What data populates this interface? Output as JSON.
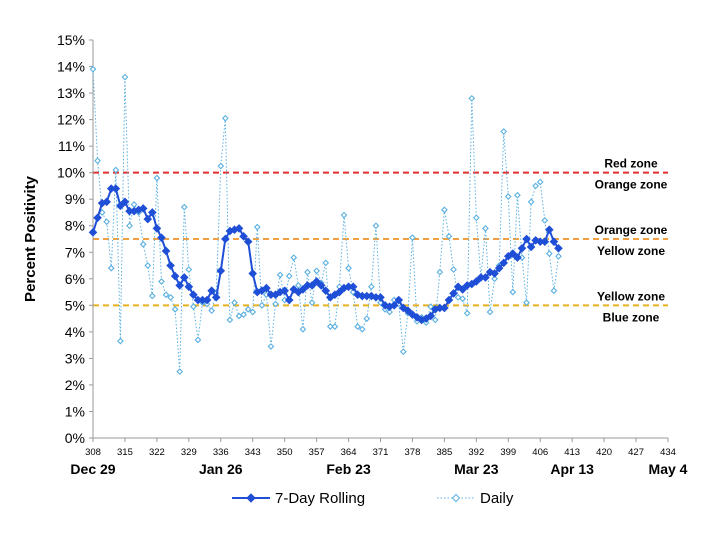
{
  "chart_data": {
    "type": "line",
    "ylabel": "Percent Positivity",
    "xlabel": "",
    "ylim": [
      0,
      15
    ],
    "xlim": [
      308,
      434
    ],
    "y_ticks": [
      "0%",
      "1%",
      "2%",
      "3%",
      "4%",
      "5%",
      "6%",
      "7%",
      "8%",
      "9%",
      "10%",
      "11%",
      "12%",
      "13%",
      "14%",
      "15%"
    ],
    "x_ticks": [
      "308",
      "315",
      "322",
      "329",
      "336",
      "343",
      "350",
      "357",
      "364",
      "371",
      "378",
      "385",
      "392",
      "399",
      "406",
      "413",
      "420",
      "427",
      "434"
    ],
    "date_labels": [
      {
        "x": 308,
        "text": "Dec 29"
      },
      {
        "x": 336,
        "text": "Jan 26"
      },
      {
        "x": 364,
        "text": "Feb 23"
      },
      {
        "x": 392,
        "text": "Mar 23"
      },
      {
        "x": 413,
        "text": "Apr 13"
      },
      {
        "x": 434,
        "text": "May 4"
      }
    ],
    "thresholds": [
      {
        "value": 10,
        "color": "#e03030",
        "above": "Red zone",
        "below": "Orange zone"
      },
      {
        "value": 7.5,
        "color": "#f0a040",
        "above": "Orange zone",
        "below": "Yellow zone"
      },
      {
        "value": 5,
        "color": "#e8b020",
        "above": "Yellow zone",
        "below": "Blue zone"
      }
    ],
    "grid": false,
    "legend_position": "bottom",
    "series": [
      {
        "name": "7-Day Rolling",
        "color": "#1f4fd6",
        "style": "solid-diamond",
        "x_start": 308,
        "values": [
          7.75,
          8.3,
          8.85,
          8.9,
          9.4,
          9.4,
          8.75,
          8.9,
          8.55,
          8.55,
          8.6,
          8.65,
          8.25,
          8.5,
          7.9,
          7.55,
          7.05,
          6.5,
          6.1,
          5.75,
          6.05,
          5.7,
          5.4,
          5.2,
          5.2,
          5.2,
          5.55,
          5.3,
          6.3,
          7.5,
          7.8,
          7.85,
          7.9,
          7.6,
          7.4,
          6.2,
          5.5,
          5.55,
          5.65,
          5.4,
          5.4,
          5.5,
          5.55,
          5.2,
          5.6,
          5.5,
          5.6,
          5.75,
          5.75,
          5.9,
          5.75,
          5.55,
          5.3,
          5.4,
          5.5,
          5.65,
          5.7,
          5.7,
          5.4,
          5.35,
          5.35,
          5.35,
          5.3,
          5.3,
          5.0,
          4.95,
          5.0,
          5.2,
          4.9,
          4.8,
          4.65,
          4.55,
          4.45,
          4.5,
          4.6,
          4.85,
          4.9,
          4.9,
          5.2,
          5.45,
          5.7,
          5.6,
          5.75,
          5.8,
          5.9,
          6.05,
          6.05,
          6.25,
          6.2,
          6.4,
          6.6,
          6.85,
          6.95,
          6.8,
          7.15,
          7.5,
          7.2,
          7.45,
          7.4,
          7.4,
          7.85,
          7.4,
          7.15
        ]
      },
      {
        "name": "Daily",
        "color": "#5ab0e0",
        "style": "dotted-open-diamond",
        "x_start": 308,
        "values": [
          13.9,
          10.45,
          8.5,
          8.15,
          6.4,
          10.1,
          3.65,
          13.6,
          8.0,
          8.8,
          8.5,
          7.3,
          6.5,
          5.35,
          9.8,
          5.9,
          5.4,
          5.3,
          4.85,
          2.5,
          8.7,
          6.35,
          4.95,
          3.7,
          5.1,
          5.05,
          4.8,
          5.45,
          10.25,
          12.05,
          4.45,
          5.1,
          4.6,
          4.65,
          4.85,
          4.75,
          7.95,
          5.0,
          5.4,
          3.45,
          5.05,
          6.15,
          5.2,
          6.1,
          6.8,
          5.75,
          4.1,
          6.25,
          5.1,
          6.3,
          5.85,
          6.6,
          4.2,
          4.2,
          5.7,
          8.4,
          6.4,
          5.5,
          4.2,
          4.1,
          4.5,
          5.7,
          8.0,
          5.1,
          4.85,
          4.75,
          5.2,
          5.05,
          3.25,
          4.7,
          7.55,
          4.4,
          4.55,
          4.35,
          4.95,
          4.45,
          6.25,
          8.6,
          7.6,
          6.35,
          5.3,
          5.25,
          4.7,
          12.8,
          8.3,
          6.05,
          7.9,
          4.75,
          6.0,
          6.5,
          11.55,
          9.1,
          5.5,
          9.15,
          6.8,
          5.1,
          8.9,
          9.5,
          9.65,
          8.2,
          6.95,
          5.55,
          6.85
        ]
      }
    ]
  }
}
